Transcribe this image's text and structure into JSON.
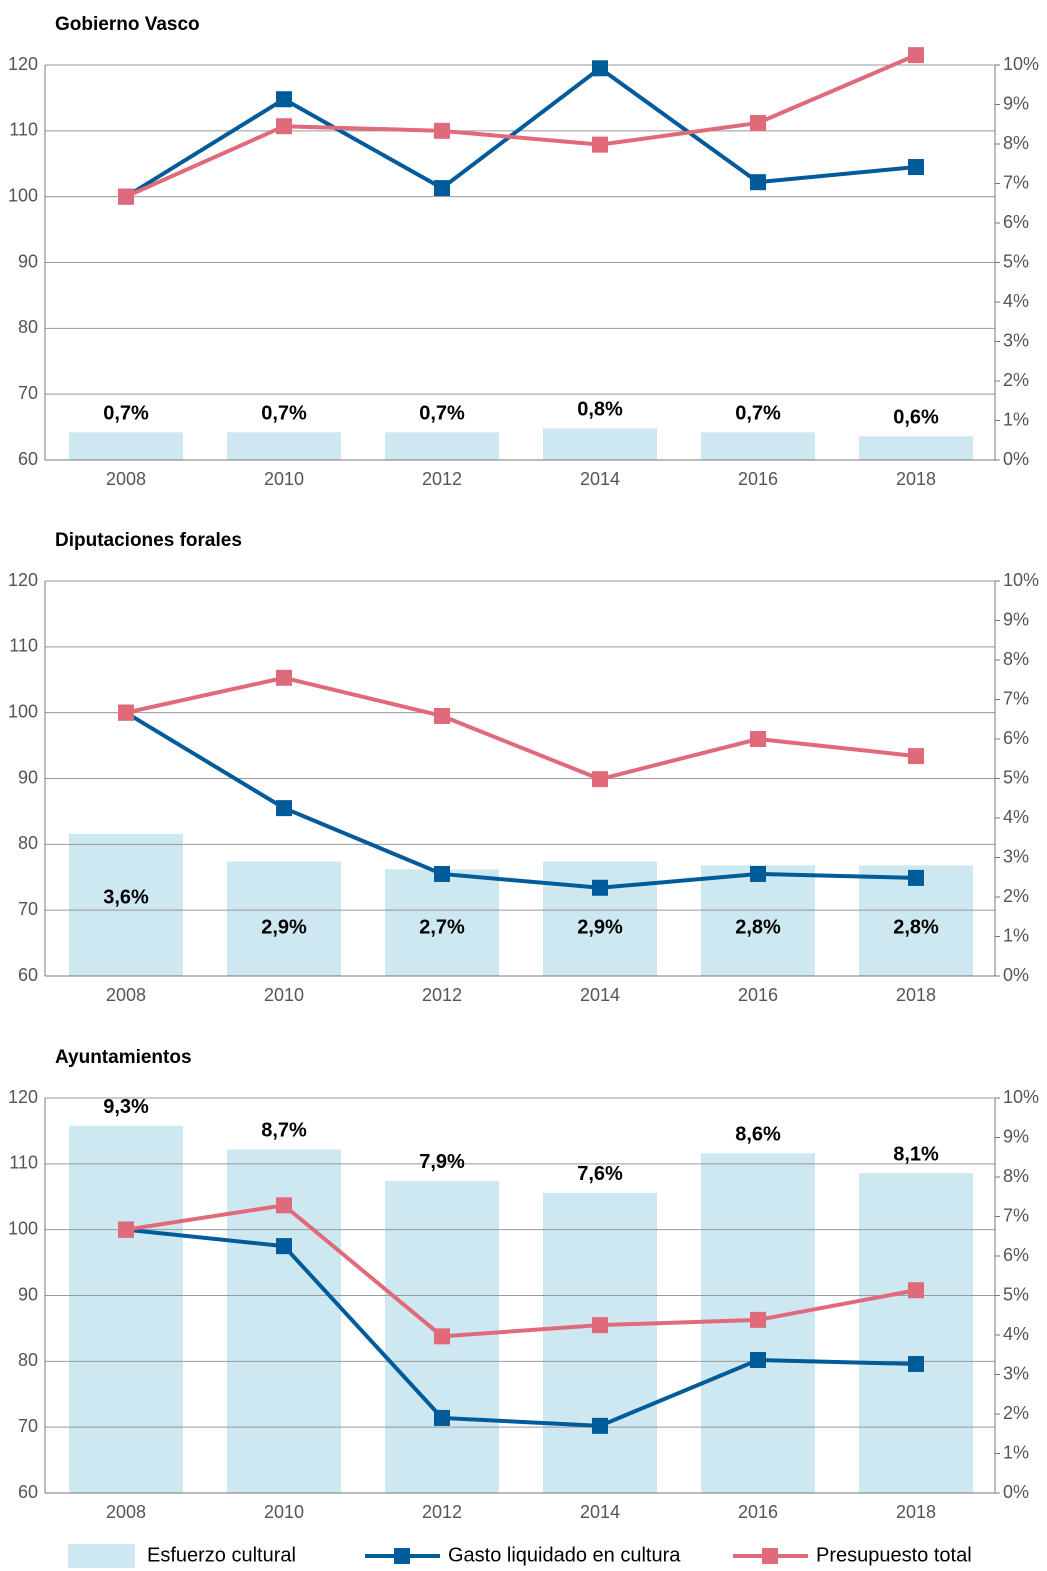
{
  "chart_data": [
    {
      "type": "line",
      "title": "Gobierno Vasco",
      "categories": [
        "2008",
        "2010",
        "2012",
        "2014",
        "2016",
        "2018"
      ],
      "ylim": [
        60,
        120
      ],
      "yticks": [
        60,
        70,
        80,
        90,
        100,
        110,
        120
      ],
      "y2lim": [
        0,
        10
      ],
      "y2ticks": [
        {
          "value": 0,
          "label": "0%"
        },
        {
          "value": 1,
          "label": "1%"
        },
        {
          "value": 2,
          "label": "2%"
        },
        {
          "value": 3,
          "label": "3%"
        },
        {
          "value": 4,
          "label": "4%"
        },
        {
          "value": 5,
          "label": "5%"
        },
        {
          "value": 6,
          "label": "6%"
        },
        {
          "value": 7,
          "label": "7%"
        },
        {
          "value": 8,
          "label": "8%"
        },
        {
          "value": 9,
          "label": "9%"
        },
        {
          "value": 10,
          "label": "10%"
        }
      ],
      "grid": true,
      "series": [
        {
          "type": "bar",
          "axis": "y2",
          "color": "#cde8f1",
          "values": [
            0.7,
            0.7,
            0.7,
            0.8,
            0.7,
            0.6
          ],
          "value_labels": [
            "0,7%",
            "0,7%",
            "0,7%",
            "0,8%",
            "0,7%",
            "0,6%"
          ]
        },
        {
          "type": "line",
          "color": "#005b9a",
          "values": [
            100,
            114.8,
            101.3,
            119.5,
            102.2,
            104.5
          ]
        },
        {
          "type": "line",
          "color": "#e06a7a",
          "values": [
            100,
            110.7,
            110,
            107.9,
            111.2,
            121.5
          ]
        }
      ]
    },
    {
      "type": "line",
      "title": "Diputaciones forales",
      "categories": [
        "2008",
        "2010",
        "2012",
        "2014",
        "2016",
        "2018"
      ],
      "ylim": [
        60,
        120
      ],
      "yticks": [
        60,
        70,
        80,
        90,
        100,
        110,
        120
      ],
      "y2lim": [
        0,
        10
      ],
      "y2ticks": [
        {
          "value": 0,
          "label": "0%"
        },
        {
          "value": 1,
          "label": "1%"
        },
        {
          "value": 2,
          "label": "2%"
        },
        {
          "value": 3,
          "label": "3%"
        },
        {
          "value": 4,
          "label": "4%"
        },
        {
          "value": 5,
          "label": "5%"
        },
        {
          "value": 6,
          "label": "6%"
        },
        {
          "value": 7,
          "label": "7%"
        },
        {
          "value": 8,
          "label": "8%"
        },
        {
          "value": 9,
          "label": "9%"
        },
        {
          "value": 10,
          "label": "10%"
        }
      ],
      "grid": true,
      "series": [
        {
          "type": "bar",
          "axis": "y2",
          "color": "#cde8f1",
          "values": [
            3.6,
            2.9,
            2.7,
            2.9,
            2.8,
            2.8
          ],
          "value_labels": [
            "3,6%",
            "2,9%",
            "2,7%",
            "2,9%",
            "2,8%",
            "2,8%"
          ]
        },
        {
          "type": "line",
          "color": "#005b9a",
          "values": [
            100,
            85.5,
            75.5,
            73.4,
            75.5,
            74.9
          ]
        },
        {
          "type": "line",
          "color": "#e06a7a",
          "values": [
            100,
            105.3,
            99.5,
            89.9,
            96,
            93.4
          ]
        }
      ]
    },
    {
      "type": "line",
      "title": "Ayuntamientos",
      "categories": [
        "2008",
        "2010",
        "2012",
        "2014",
        "2016",
        "2018"
      ],
      "ylim": [
        60,
        120
      ],
      "yticks": [
        60,
        70,
        80,
        90,
        100,
        110,
        120
      ],
      "y2lim": [
        0,
        10
      ],
      "y2ticks": [
        {
          "value": 0,
          "label": "0%"
        },
        {
          "value": 1,
          "label": "1%"
        },
        {
          "value": 2,
          "label": "2%"
        },
        {
          "value": 3,
          "label": "3%"
        },
        {
          "value": 4,
          "label": "4%"
        },
        {
          "value": 5,
          "label": "5%"
        },
        {
          "value": 6,
          "label": "6%"
        },
        {
          "value": 7,
          "label": "7%"
        },
        {
          "value": 8,
          "label": "8%"
        },
        {
          "value": 9,
          "label": "9%"
        },
        {
          "value": 10,
          "label": "10%"
        }
      ],
      "grid": true,
      "series": [
        {
          "type": "bar",
          "axis": "y2",
          "color": "#cde8f1",
          "values": [
            9.3,
            8.7,
            7.9,
            7.6,
            8.6,
            8.1
          ],
          "value_labels": [
            "9,3%",
            "8,7%",
            "7,9%",
            "7,6%",
            "8,6%",
            "8,1%"
          ]
        },
        {
          "type": "line",
          "color": "#005b9a",
          "values": [
            100,
            97.5,
            71.4,
            70.2,
            80.2,
            79.6
          ]
        },
        {
          "type": "line",
          "color": "#e06a7a",
          "values": [
            100,
            103.7,
            83.8,
            85.5,
            86.3,
            90.8
          ]
        }
      ]
    }
  ],
  "legend": {
    "entries": [
      {
        "name": "Esfuerzo cultural",
        "type": "bar",
        "color": "#cde8f1"
      },
      {
        "name": "Gasto liquidado en cultura",
        "type": "line",
        "color": "#005b9a"
      },
      {
        "name": "Presupuesto total",
        "type": "line",
        "color": "#e06a7a"
      }
    ]
  }
}
